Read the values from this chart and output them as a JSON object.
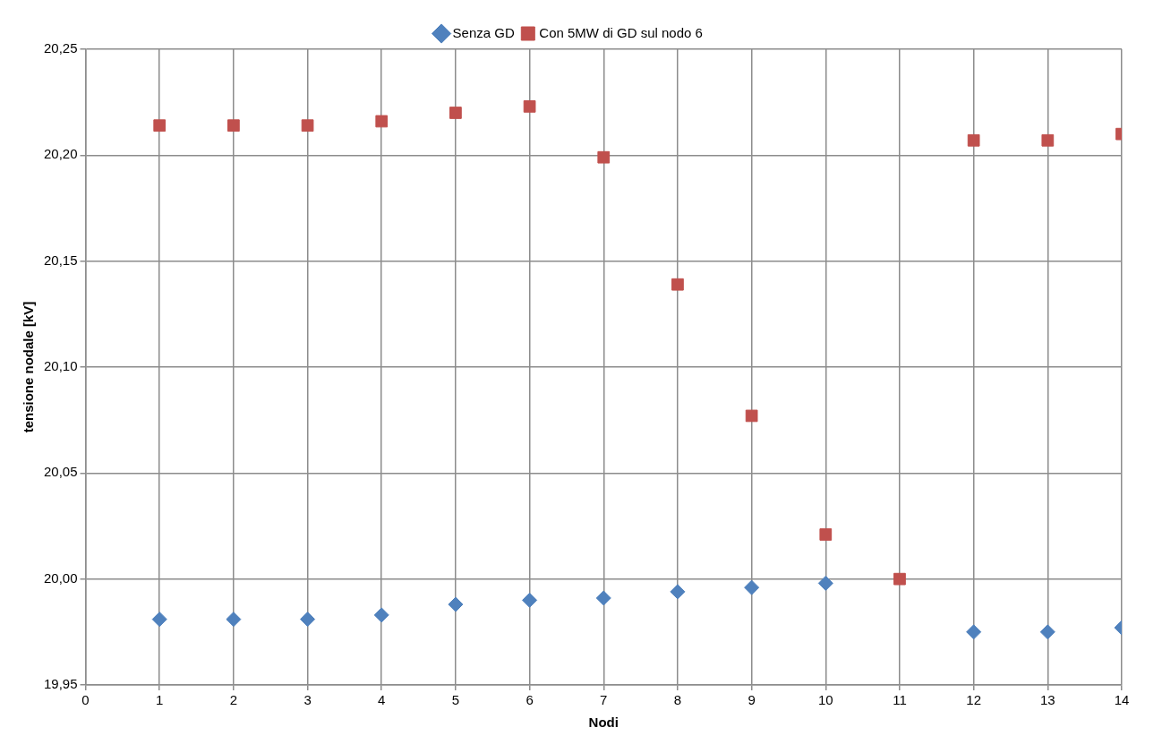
{
  "chart_data": {
    "type": "scatter",
    "xlabel": "Nodi",
    "ylabel": "tensione nodale [kV]",
    "x": [
      1,
      2,
      3,
      4,
      5,
      6,
      7,
      8,
      9,
      10,
      11,
      12,
      13,
      14
    ],
    "series": [
      {
        "name": "Senza GD",
        "color": "#4f81bd",
        "marker": "diamond",
        "values": [
          19.981,
          19.981,
          19.981,
          19.983,
          19.988,
          19.99,
          19.991,
          19.994,
          19.996,
          19.998,
          null,
          19.975,
          19.975,
          19.977
        ]
      },
      {
        "name": "Con 5MW di GD sul nodo 6",
        "color": "#c0504d",
        "marker": "square",
        "values": [
          20.214,
          20.214,
          20.214,
          20.216,
          20.22,
          20.223,
          20.199,
          20.139,
          20.077,
          20.021,
          20.0,
          20.207,
          20.207,
          20.21
        ]
      }
    ],
    "xlim": [
      0,
      14
    ],
    "xticks": [
      0,
      1,
      2,
      3,
      4,
      5,
      6,
      7,
      8,
      9,
      10,
      11,
      12,
      13,
      14
    ],
    "ylim": [
      19.95,
      20.25
    ],
    "yticks": [
      {
        "value": 19.95,
        "label": "19,95"
      },
      {
        "value": 20,
        "label": "20,00"
      },
      {
        "value": 20.05,
        "label": "20,05"
      },
      {
        "value": 20.1,
        "label": "20,10"
      },
      {
        "value": 20.15,
        "label": "20,15"
      },
      {
        "value": 20.2,
        "label": "20,20"
      },
      {
        "value": 20.25,
        "label": "20,25"
      }
    ],
    "grid": true,
    "legend": "top"
  }
}
